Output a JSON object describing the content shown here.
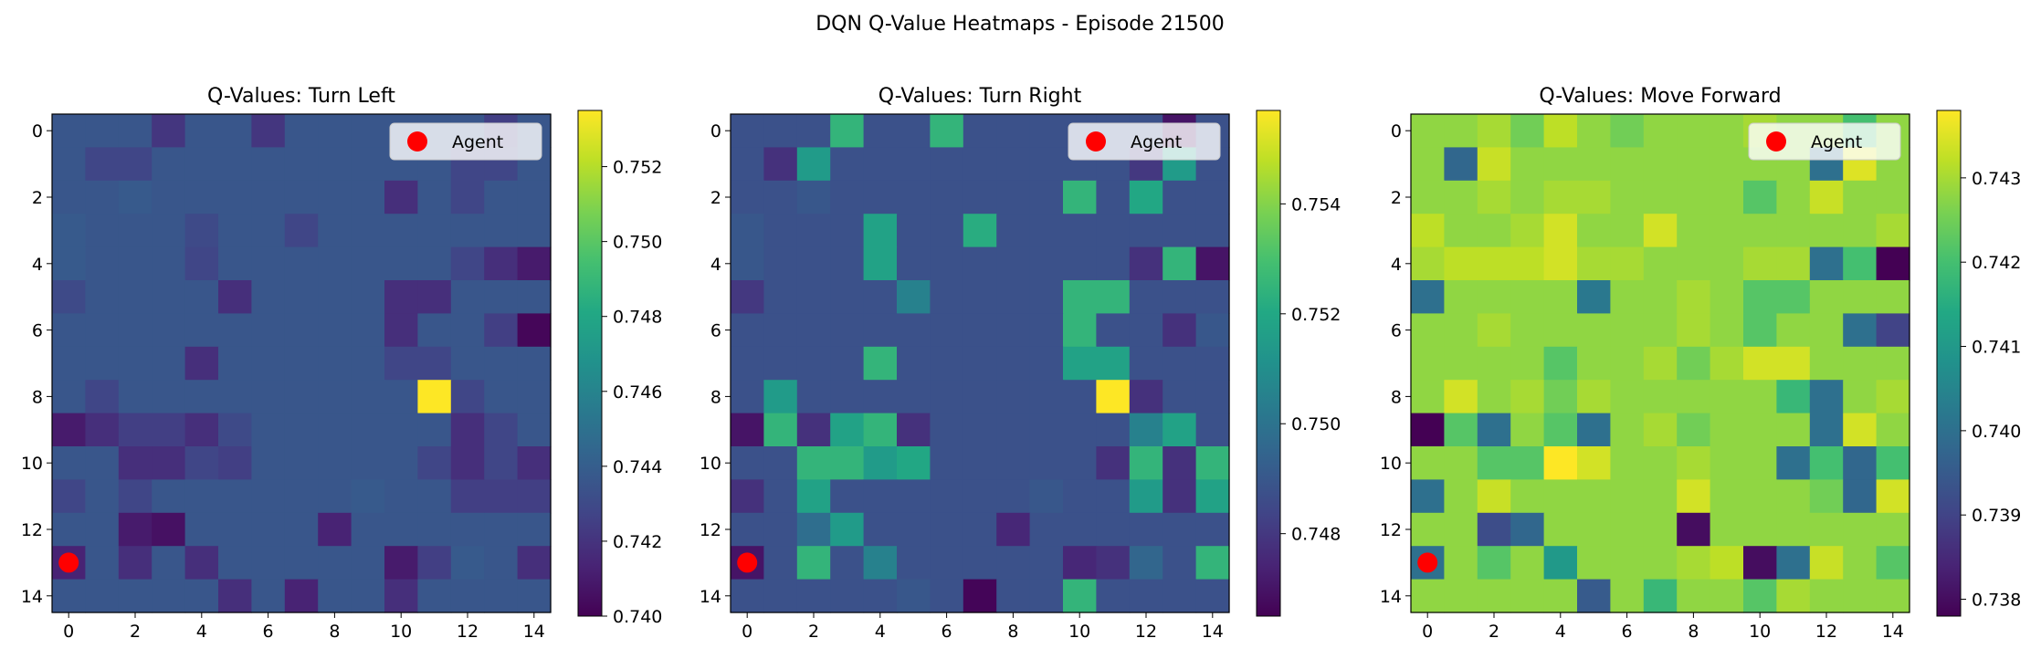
{
  "chart_data": {
    "suptitle": "DQN Q-Value Heatmaps - Episode 21500",
    "charts": [
      {
        "type": "heatmap",
        "title": "Q-Values: Turn Left",
        "colormap": "viridis",
        "xticks": [
          0,
          2,
          4,
          6,
          8,
          10,
          12,
          14
        ],
        "yticks": [
          0,
          2,
          4,
          6,
          8,
          10,
          12,
          14
        ],
        "vmin": 0.74,
        "vmax": 0.7535,
        "colorbar_ticks": [
          "0.740",
          "0.742",
          "0.744",
          "0.746",
          "0.748",
          "0.750",
          "0.752"
        ],
        "agent": {
          "x": 0,
          "y": 13,
          "label": "Agent",
          "color": "#ff0000"
        },
        "legend_loc": "upper right",
        "values": [
          [
            0.7436,
            0.7436,
            0.7436,
            0.7421,
            0.7436,
            0.7436,
            0.7421,
            0.7436,
            0.7436,
            0.7436,
            0.7436,
            0.7436,
            0.7436,
            0.7425,
            0.7436
          ],
          [
            0.7436,
            0.7428,
            0.7428,
            0.7436,
            0.7436,
            0.7436,
            0.7436,
            0.7436,
            0.7436,
            0.7436,
            0.7436,
            0.7436,
            0.7428,
            0.7428,
            0.7436
          ],
          [
            0.7436,
            0.7436,
            0.7438,
            0.7436,
            0.7436,
            0.7436,
            0.7436,
            0.7436,
            0.7436,
            0.7436,
            0.7418,
            0.7436,
            0.7428,
            0.7436,
            0.7436
          ],
          [
            0.7438,
            0.7436,
            0.7436,
            0.7436,
            0.743,
            0.7436,
            0.7436,
            0.7428,
            0.7436,
            0.7436,
            0.7436,
            0.7436,
            0.7436,
            0.7436,
            0.7436
          ],
          [
            0.7438,
            0.7436,
            0.7436,
            0.7436,
            0.7428,
            0.7436,
            0.7436,
            0.7436,
            0.7436,
            0.7436,
            0.7436,
            0.7436,
            0.7428,
            0.7418,
            0.741
          ],
          [
            0.743,
            0.7436,
            0.7436,
            0.7436,
            0.7436,
            0.7418,
            0.7436,
            0.7436,
            0.7436,
            0.7436,
            0.7418,
            0.7418,
            0.7436,
            0.7436,
            0.7436
          ],
          [
            0.7436,
            0.7436,
            0.7436,
            0.7436,
            0.7436,
            0.7436,
            0.7436,
            0.7436,
            0.7436,
            0.7436,
            0.7418,
            0.7436,
            0.7436,
            0.7425,
            0.7402
          ],
          [
            0.7436,
            0.7436,
            0.7436,
            0.7436,
            0.7418,
            0.7436,
            0.7436,
            0.7436,
            0.7436,
            0.7436,
            0.7428,
            0.7428,
            0.7436,
            0.7436,
            0.7436
          ],
          [
            0.7436,
            0.7428,
            0.7436,
            0.7436,
            0.7436,
            0.7436,
            0.7436,
            0.7436,
            0.7436,
            0.7436,
            0.7436,
            0.7535,
            0.7428,
            0.7436,
            0.7436
          ],
          [
            0.741,
            0.7418,
            0.7425,
            0.7425,
            0.7418,
            0.743,
            0.7436,
            0.7436,
            0.7436,
            0.7436,
            0.7436,
            0.7436,
            0.7418,
            0.7428,
            0.7436
          ],
          [
            0.7436,
            0.7436,
            0.7418,
            0.7418,
            0.7428,
            0.7425,
            0.7436,
            0.7436,
            0.7436,
            0.7436,
            0.7436,
            0.7428,
            0.7418,
            0.7428,
            0.7418
          ],
          [
            0.7428,
            0.7436,
            0.7428,
            0.7436,
            0.7436,
            0.7436,
            0.7436,
            0.7436,
            0.7436,
            0.7438,
            0.7436,
            0.7436,
            0.7425,
            0.7425,
            0.7425
          ],
          [
            0.7436,
            0.7436,
            0.741,
            0.7406,
            0.7436,
            0.7436,
            0.7436,
            0.7436,
            0.7413,
            0.7436,
            0.7436,
            0.7436,
            0.7436,
            0.7436,
            0.7436
          ],
          [
            0.7413,
            0.7436,
            0.7418,
            0.7436,
            0.7418,
            0.7436,
            0.7436,
            0.7436,
            0.7436,
            0.7436,
            0.741,
            0.7425,
            0.7438,
            0.7436,
            0.7418
          ],
          [
            0.7436,
            0.7436,
            0.7436,
            0.7436,
            0.7436,
            0.7418,
            0.7436,
            0.7413,
            0.7436,
            0.7436,
            0.7418,
            0.7436,
            0.7436,
            0.7436,
            0.7436
          ]
        ]
      },
      {
        "type": "heatmap",
        "title": "Q-Values: Turn Right",
        "colormap": "viridis",
        "xticks": [
          0,
          2,
          4,
          6,
          8,
          10,
          12,
          14
        ],
        "yticks": [
          0,
          2,
          4,
          6,
          8,
          10,
          12,
          14
        ],
        "vmin": 0.7465,
        "vmax": 0.7557,
        "colorbar_ticks": [
          "0.748",
          "0.750",
          "0.752",
          "0.754"
        ],
        "agent": {
          "x": 0,
          "y": 13,
          "label": "Agent",
          "color": "#ff0000"
        },
        "legend_loc": "upper right",
        "values": [
          [
            0.7488,
            0.7488,
            0.7488,
            0.7525,
            0.7488,
            0.7488,
            0.7525,
            0.7488,
            0.7488,
            0.7488,
            0.7488,
            0.7488,
            0.7488,
            0.747,
            0.7488
          ],
          [
            0.7488,
            0.7478,
            0.7515,
            0.7488,
            0.7488,
            0.7488,
            0.7488,
            0.7488,
            0.7488,
            0.7488,
            0.7488,
            0.7488,
            0.748,
            0.7515,
            0.7488
          ],
          [
            0.7488,
            0.7488,
            0.749,
            0.7488,
            0.7488,
            0.7488,
            0.7488,
            0.7488,
            0.7488,
            0.7488,
            0.7525,
            0.7488,
            0.752,
            0.7488,
            0.7488
          ],
          [
            0.749,
            0.7488,
            0.7488,
            0.7488,
            0.7518,
            0.7488,
            0.7488,
            0.7522,
            0.7488,
            0.7488,
            0.7488,
            0.7488,
            0.7488,
            0.7488,
            0.7488
          ],
          [
            0.749,
            0.7488,
            0.7488,
            0.7488,
            0.7518,
            0.7488,
            0.7488,
            0.7488,
            0.7488,
            0.7488,
            0.7488,
            0.7488,
            0.7478,
            0.7525,
            0.747
          ],
          [
            0.748,
            0.7488,
            0.7488,
            0.7488,
            0.7488,
            0.7505,
            0.7488,
            0.7488,
            0.7488,
            0.7488,
            0.7525,
            0.7525,
            0.7488,
            0.7488,
            0.7488
          ],
          [
            0.7488,
            0.7488,
            0.7488,
            0.7488,
            0.7488,
            0.7488,
            0.7488,
            0.7488,
            0.7488,
            0.7488,
            0.7525,
            0.7488,
            0.7488,
            0.7478,
            0.749
          ],
          [
            0.7488,
            0.7488,
            0.7488,
            0.7488,
            0.7525,
            0.7488,
            0.7488,
            0.7488,
            0.7488,
            0.7488,
            0.7518,
            0.7518,
            0.7488,
            0.7488,
            0.7488
          ],
          [
            0.7488,
            0.7515,
            0.7488,
            0.7488,
            0.7488,
            0.7488,
            0.7488,
            0.7488,
            0.7488,
            0.7488,
            0.7488,
            0.7557,
            0.7478,
            0.7488,
            0.7488
          ],
          [
            0.747,
            0.7525,
            0.7478,
            0.7518,
            0.7525,
            0.7478,
            0.7488,
            0.7488,
            0.7488,
            0.7488,
            0.7488,
            0.7488,
            0.7505,
            0.7518,
            0.7488
          ],
          [
            0.7488,
            0.7488,
            0.7525,
            0.7525,
            0.7515,
            0.752,
            0.7488,
            0.7488,
            0.7488,
            0.7488,
            0.7488,
            0.7478,
            0.7525,
            0.7478,
            0.7525
          ],
          [
            0.7478,
            0.7488,
            0.7518,
            0.7488,
            0.7488,
            0.7488,
            0.7488,
            0.7488,
            0.7488,
            0.749,
            0.7488,
            0.7488,
            0.7515,
            0.7478,
            0.7518
          ],
          [
            0.7488,
            0.7488,
            0.7498,
            0.7515,
            0.7488,
            0.7488,
            0.7488,
            0.7488,
            0.7475,
            0.7488,
            0.7488,
            0.7488,
            0.7488,
            0.7488,
            0.7488
          ],
          [
            0.747,
            0.7488,
            0.7525,
            0.7488,
            0.7505,
            0.7488,
            0.7488,
            0.7488,
            0.7488,
            0.7488,
            0.7475,
            0.7478,
            0.7495,
            0.7488,
            0.7525
          ],
          [
            0.7488,
            0.7488,
            0.7488,
            0.7488,
            0.7488,
            0.749,
            0.7488,
            0.7466,
            0.7488,
            0.7488,
            0.7525,
            0.7488,
            0.7488,
            0.7488,
            0.7488
          ]
        ]
      },
      {
        "type": "heatmap",
        "title": "Q-Values: Move Forward",
        "colormap": "viridis",
        "xticks": [
          0,
          2,
          4,
          6,
          8,
          10,
          12,
          14
        ],
        "yticks": [
          0,
          2,
          4,
          6,
          8,
          10,
          12,
          14
        ],
        "vmin": 0.7378,
        "vmax": 0.7438,
        "colorbar_ticks": [
          "0.738",
          "0.739",
          "0.740",
          "0.741",
          "0.742",
          "0.743"
        ],
        "agent": {
          "x": 0,
          "y": 13,
          "label": "Agent",
          "color": "#ff0000"
        },
        "legend_loc": "upper right",
        "values": [
          [
            0.7428,
            0.7428,
            0.743,
            0.7425,
            0.7432,
            0.7428,
            0.7425,
            0.7428,
            0.7428,
            0.7428,
            0.743,
            0.7428,
            0.7428,
            0.742,
            0.7428
          ],
          [
            0.7428,
            0.7398,
            0.7433,
            0.7428,
            0.7428,
            0.7428,
            0.7428,
            0.7428,
            0.7428,
            0.7428,
            0.7428,
            0.7428,
            0.74,
            0.7435,
            0.7428
          ],
          [
            0.7428,
            0.7428,
            0.743,
            0.7428,
            0.743,
            0.743,
            0.7428,
            0.7428,
            0.7428,
            0.7428,
            0.7422,
            0.7428,
            0.7433,
            0.7428,
            0.7428
          ],
          [
            0.7432,
            0.7428,
            0.7428,
            0.743,
            0.7434,
            0.7428,
            0.7428,
            0.7434,
            0.7428,
            0.7428,
            0.7428,
            0.7428,
            0.7428,
            0.7428,
            0.743
          ],
          [
            0.743,
            0.7432,
            0.7432,
            0.7432,
            0.7434,
            0.743,
            0.743,
            0.7428,
            0.7428,
            0.7428,
            0.743,
            0.743,
            0.74,
            0.742,
            0.7378
          ],
          [
            0.74,
            0.7428,
            0.7428,
            0.7428,
            0.7428,
            0.7402,
            0.7428,
            0.7428,
            0.743,
            0.7428,
            0.7422,
            0.7422,
            0.7428,
            0.7428,
            0.7428
          ],
          [
            0.7428,
            0.7428,
            0.743,
            0.7428,
            0.7428,
            0.7428,
            0.7428,
            0.7428,
            0.743,
            0.7428,
            0.7422,
            0.7428,
            0.7428,
            0.74,
            0.739
          ],
          [
            0.7428,
            0.7428,
            0.7428,
            0.7428,
            0.7422,
            0.7428,
            0.7428,
            0.743,
            0.7425,
            0.743,
            0.7434,
            0.7434,
            0.7428,
            0.7428,
            0.7428
          ],
          [
            0.7428,
            0.7434,
            0.7428,
            0.743,
            0.7425,
            0.743,
            0.7428,
            0.7428,
            0.7428,
            0.7428,
            0.7428,
            0.7418,
            0.74,
            0.7428,
            0.743
          ],
          [
            0.7378,
            0.7422,
            0.74,
            0.7428,
            0.7422,
            0.74,
            0.7428,
            0.743,
            0.7425,
            0.7428,
            0.7428,
            0.7428,
            0.74,
            0.7434,
            0.7428
          ],
          [
            0.7428,
            0.7428,
            0.7422,
            0.7422,
            0.7438,
            0.7434,
            0.7428,
            0.7428,
            0.743,
            0.7428,
            0.7428,
            0.74,
            0.742,
            0.7398,
            0.742
          ],
          [
            0.74,
            0.7428,
            0.7433,
            0.7428,
            0.7428,
            0.7428,
            0.7428,
            0.7428,
            0.7434,
            0.7428,
            0.7428,
            0.7428,
            0.7425,
            0.7398,
            0.7434
          ],
          [
            0.7428,
            0.7428,
            0.7392,
            0.7398,
            0.7428,
            0.7428,
            0.7428,
            0.7428,
            0.738,
            0.7428,
            0.7428,
            0.7428,
            0.7428,
            0.7428,
            0.7428
          ],
          [
            0.74,
            0.7428,
            0.7422,
            0.7428,
            0.741,
            0.7428,
            0.7428,
            0.7428,
            0.743,
            0.7432,
            0.738,
            0.74,
            0.7433,
            0.7428,
            0.7422
          ],
          [
            0.7428,
            0.7428,
            0.7428,
            0.7428,
            0.7428,
            0.7395,
            0.7428,
            0.7418,
            0.7428,
            0.7428,
            0.7422,
            0.743,
            0.7428,
            0.7428,
            0.7428
          ]
        ]
      }
    ]
  }
}
